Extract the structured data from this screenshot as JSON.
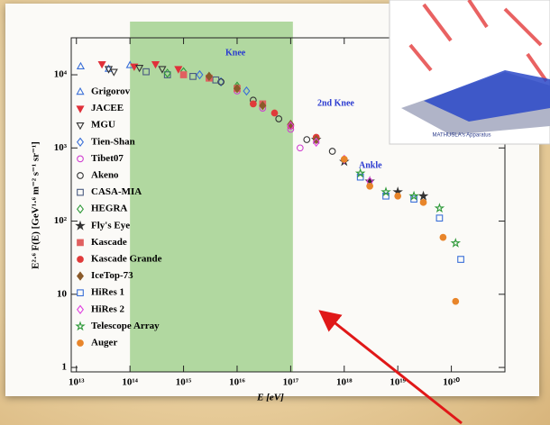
{
  "chart_data": {
    "type": "scatter",
    "x_label": "E [eV]",
    "y_label": "E²·⁶ F(E) [GeV¹·⁶ m⁻² s⁻¹ sr⁻¹]",
    "log_x": true,
    "log_y": true,
    "xlim": [
      8000000000000.0,
      1e+21
    ],
    "ylim": [
      0.87,
      32000
    ],
    "xticks": [
      {
        "value": 10000000000000.0,
        "label": "10¹³"
      },
      {
        "value": 100000000000000.0,
        "label": "10¹⁴"
      },
      {
        "value": 1000000000000000.0,
        "label": "10¹⁵"
      },
      {
        "value": 1e+16,
        "label": "10¹⁶"
      },
      {
        "value": 1e+17,
        "label": "10¹⁷"
      },
      {
        "value": 1e+18,
        "label": "10¹⁸"
      },
      {
        "value": 1e+19,
        "label": "10¹⁹"
      },
      {
        "value": 1e+20,
        "label": "10²⁰"
      }
    ],
    "yticks": [
      1,
      10,
      {
        "value": 100,
        "label": "10²"
      },
      {
        "value": 1000,
        "label": "10³"
      },
      {
        "value": 10000,
        "label": "10⁴"
      }
    ],
    "shaded_region": {
      "x": [
        100000000000000.0,
        1.1e+17
      ],
      "color": "#9fd08a"
    },
    "annotations": [
      {
        "text": "Knee"
      },
      {
        "text": "2nd Knee"
      },
      {
        "text": "Ankle"
      }
    ],
    "legend": "upper left",
    "series": [
      {
        "name": "Grigorov",
        "color": "#3a6fd8",
        "marker": "triangle-up",
        "filled": false,
        "x": [
          12000000000000.0,
          40000000000000.0,
          100000000000000.0
        ],
        "values": [
          13000,
          12000,
          13500
        ]
      },
      {
        "name": "JACEE",
        "color": "#e0303a",
        "marker": "triangle-down",
        "filled": true,
        "x": [
          30000000000000.0,
          120000000000000.0,
          300000000000000.0,
          800000000000000.0
        ],
        "values": [
          14000,
          13000,
          14000,
          12000
        ]
      },
      {
        "name": "MGU",
        "color": "#333333",
        "marker": "triangle-down",
        "filled": false,
        "x": [
          40000000000000.0,
          50000000000000.0,
          150000000000000.0,
          400000000000000.0
        ],
        "values": [
          12000,
          11000,
          12500,
          12000
        ]
      },
      {
        "name": "Tien-Shan",
        "color": "#3a6fd8",
        "marker": "diamond",
        "filled": false,
        "x": [
          2000000000000000.0,
          5000000000000000.0,
          1.5e+16
        ],
        "values": [
          10000,
          8000,
          6000
        ]
      },
      {
        "name": "Tibet07",
        "color": "#d040d0",
        "marker": "circle",
        "filled": false,
        "x": [
          3000000000000000.0,
          1e+16,
          3e+16,
          1e+17,
          1.5e+17
        ],
        "values": [
          9000,
          6000,
          3500,
          1800,
          1000
        ]
      },
      {
        "name": "Akeno",
        "color": "#333333",
        "marker": "circle",
        "filled": false,
        "x": [
          5000000000000000.0,
          2e+16,
          6e+16,
          2e+17,
          6e+17
        ],
        "values": [
          8000,
          4500,
          2500,
          1300,
          900
        ]
      },
      {
        "name": "CASA-MIA",
        "color": "#4a5a80",
        "marker": "square",
        "filled": false,
        "x": [
          200000000000000.0,
          500000000000000.0,
          1500000000000000.0,
          4000000000000000.0
        ],
        "values": [
          11000,
          10000,
          9500,
          8500
        ]
      },
      {
        "name": "HEGRA",
        "color": "#2f9a3a",
        "marker": "diamond",
        "filled": false,
        "x": [
          500000000000000.0,
          1000000000000000.0,
          3000000000000000.0,
          1e+16
        ],
        "values": [
          10500,
          11000,
          9500,
          7000
        ]
      },
      {
        "name": "Fly's Eye",
        "color": "#333333",
        "marker": "star",
        "filled": true,
        "x": [
          3e+17,
          1e+18,
          3e+18,
          1e+19,
          3e+19
        ],
        "values": [
          1300,
          650,
          350,
          250,
          220
        ]
      },
      {
        "name": "Kascade",
        "color": "#e06060",
        "marker": "square",
        "filled": true,
        "x": [
          1000000000000000.0,
          3000000000000000.0,
          1e+16,
          3e+16
        ],
        "values": [
          10000,
          9000,
          6500,
          4000
        ]
      },
      {
        "name": "Kascade Grande",
        "color": "#e03a3a",
        "marker": "circle",
        "filled": true,
        "x": [
          2e+16,
          5e+16,
          1e+17,
          3e+17
        ],
        "values": [
          4000,
          3000,
          2000,
          1400
        ]
      },
      {
        "name": "IceTop-73",
        "color": "#8a5a2a",
        "marker": "diamond",
        "filled": true,
        "x": [
          3000000000000000.0,
          1e+16,
          3e+16,
          1e+17,
          3e+17
        ],
        "values": [
          9500,
          6500,
          3800,
          2100,
          1300
        ]
      },
      {
        "name": "HiRes 1",
        "color": "#3a6fd8",
        "marker": "square",
        "filled": false,
        "x": [
          2e+18,
          6e+18,
          2e+19,
          6e+19,
          1.5e+20
        ],
        "values": [
          400,
          220,
          200,
          110,
          30
        ]
      },
      {
        "name": "HiRes 2",
        "color": "#e040e0",
        "marker": "diamond",
        "filled": false,
        "x": [
          1e+17,
          3e+17,
          1e+18,
          3e+18
        ],
        "values": [
          2000,
          1200,
          700,
          350
        ]
      },
      {
        "name": "Telescope Array",
        "color": "#2f9a3a",
        "marker": "star",
        "filled": false,
        "x": [
          2e+18,
          6e+18,
          2e+19,
          6e+19,
          1.2e+20
        ],
        "values": [
          450,
          250,
          220,
          150,
          50
        ]
      },
      {
        "name": "Auger",
        "color": "#e8852a",
        "marker": "circle",
        "filled": true,
        "x": [
          1e+18,
          3e+18,
          1e+19,
          3e+19,
          7e+19,
          1.2e+20
        ],
        "values": [
          700,
          300,
          220,
          180,
          60,
          8
        ]
      }
    ]
  },
  "inset": {
    "caption": "MATHUSLA's Apparatus"
  }
}
